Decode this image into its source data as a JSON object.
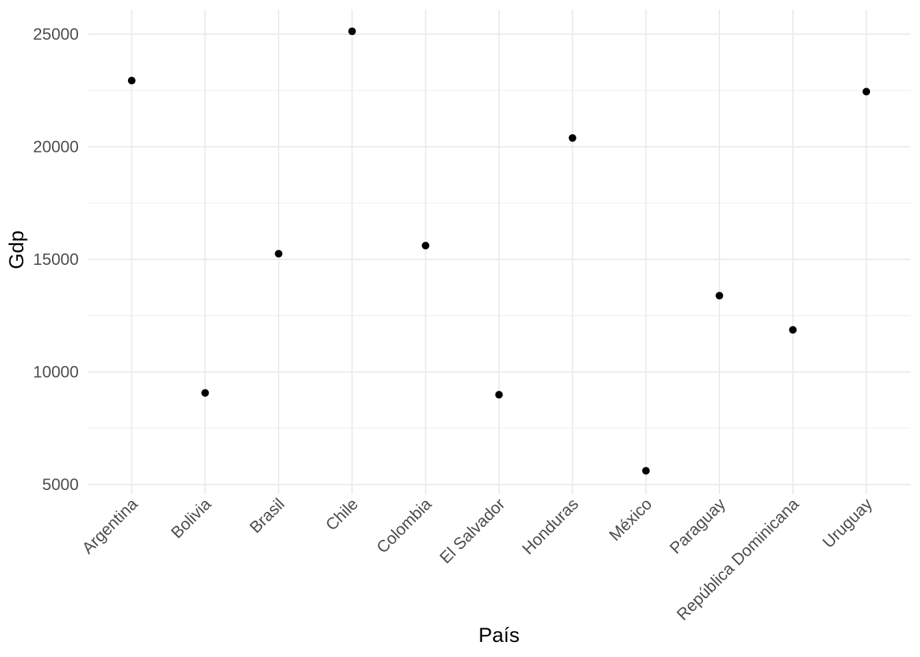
{
  "chart_data": {
    "type": "scatter",
    "title": "",
    "xlabel": "País",
    "ylabel": "Gdp",
    "categories": [
      "Argentina",
      "Bolivia",
      "Brasil",
      "Chile",
      "Colombia",
      "El Salvador",
      "Honduras",
      "México",
      "Paraguay",
      "República Dominicana",
      "Uruguay"
    ],
    "values": [
      22940,
      9070,
      15250,
      25130,
      15610,
      8990,
      20390,
      5610,
      13390,
      11870,
      22450
    ],
    "ylim": [
      4574,
      26094
    ],
    "y_major_ticks": [
      5000,
      10000,
      15000,
      20000,
      25000
    ],
    "y_minor_ticks": [
      7500,
      12500,
      17500,
      22500
    ],
    "grid": true,
    "legend": false,
    "x_tick_angle": -45,
    "point_color": "#000000",
    "grid_major_color": "#EBEBEB",
    "grid_minor_color": "#EFEFEF",
    "tick_label_color": "#4D4D4D",
    "axis_title_color": "#000000",
    "background_color": "#FFFFFF"
  }
}
